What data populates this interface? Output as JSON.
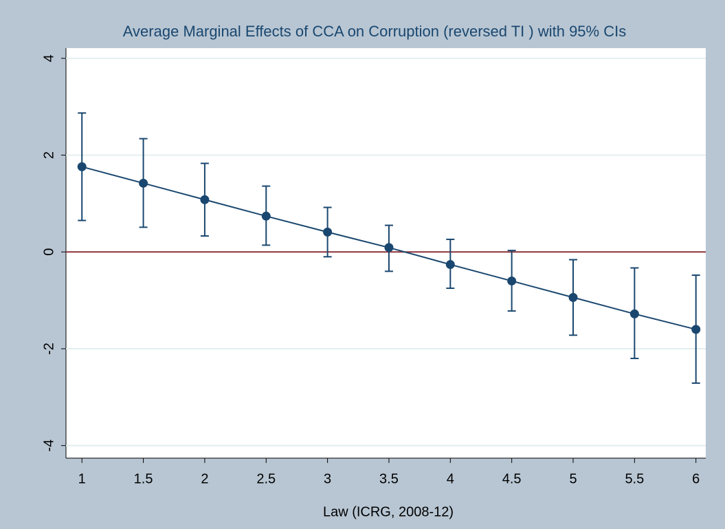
{
  "chart_data": {
    "type": "line",
    "title": "Average Marginal Effects of CCA on Corruption (reversed TI ) with 95% CIs",
    "x_label": "Law (ICRG, 2008-12)",
    "x": [
      1,
      1.5,
      2,
      2.5,
      3,
      3.5,
      4,
      4.5,
      5,
      5.5,
      6
    ],
    "series": [
      {
        "color": "#1a476f",
        "values": [
          1.76,
          1.42,
          1.08,
          0.74,
          0.41,
          0.09,
          -0.26,
          -0.6,
          -0.94,
          -1.28,
          -1.6
        ],
        "lower": [
          0.65,
          0.51,
          0.33,
          0.14,
          -0.1,
          -0.4,
          -0.75,
          -1.22,
          -1.72,
          -2.2,
          -2.71
        ],
        "upper": [
          2.87,
          2.34,
          1.83,
          1.36,
          0.92,
          0.55,
          0.26,
          0.03,
          -0.16,
          -0.33,
          -0.48
        ]
      }
    ],
    "refline": 0,
    "refline_color": "#90353b",
    "xlim": [
      0.87,
      6.08
    ],
    "xticks": [
      1,
      1.5,
      2,
      2.5,
      3,
      3.5,
      4,
      4.5,
      5,
      5.5,
      6
    ],
    "ylim": [
      -4.26,
      4.21
    ],
    "yticks": [
      -4,
      -2,
      0,
      2,
      4
    ],
    "grid": true
  }
}
